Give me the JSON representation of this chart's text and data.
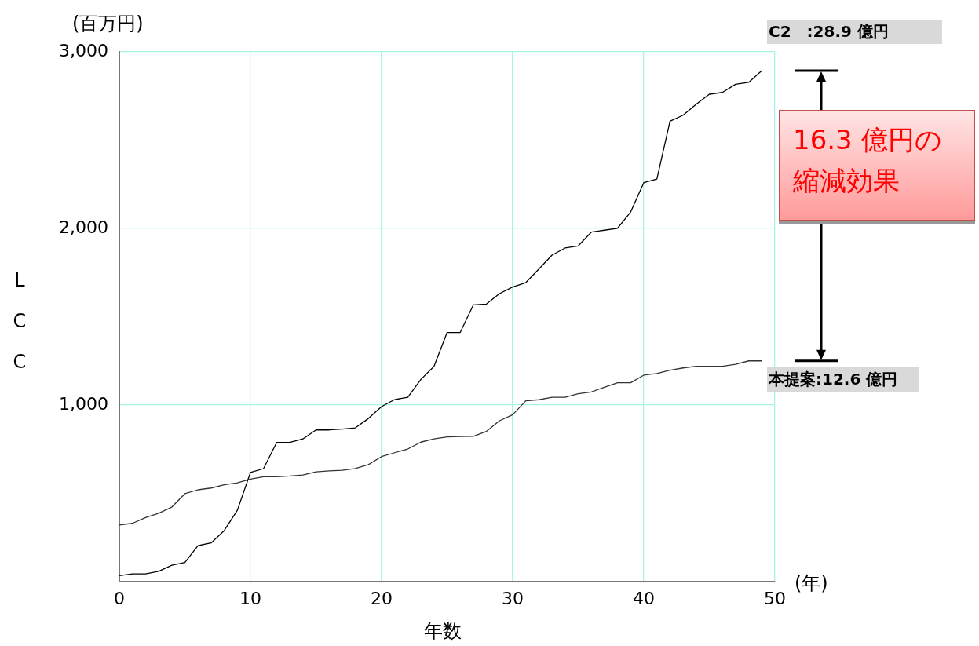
{
  "chart_data": {
    "type": "line",
    "xlabel": "年数",
    "ylabel": "LCC",
    "x": [
      0,
      1,
      2,
      3,
      4,
      5,
      6,
      7,
      8,
      9,
      10,
      11,
      12,
      13,
      14,
      15,
      16,
      17,
      18,
      19,
      20,
      21,
      22,
      23,
      24,
      25,
      26,
      27,
      28,
      29,
      30,
      31,
      32,
      33,
      34,
      35,
      36,
      37,
      38,
      39,
      40,
      41,
      42,
      43,
      44,
      45,
      46,
      47,
      48,
      49
    ],
    "series": [
      {
        "color": "#000000",
        "values": [
          34,
          44,
          44,
          58,
          93,
          108,
          204,
          219,
          289,
          404,
          618,
          640,
          788,
          788,
          808,
          859,
          859,
          864,
          871,
          924,
          991,
          1031,
          1044,
          1145,
          1219,
          1411,
          1411,
          1567,
          1572,
          1631,
          1668,
          1693,
          1770,
          1849,
          1889,
          1901,
          1979,
          1990,
          2001,
          2093,
          2259,
          2279,
          2607,
          2641,
          2703,
          2760,
          2770,
          2816,
          2827,
          2893
        ]
      },
      {
        "color": "#333333",
        "values": [
          321,
          330,
          363,
          387,
          422,
          498,
          520,
          530,
          548,
          559,
          581,
          594,
          594,
          598,
          604,
          622,
          627,
          631,
          641,
          663,
          708,
          730,
          751,
          790,
          808,
          819,
          822,
          823,
          851,
          911,
          945,
          1024,
          1030,
          1044,
          1044,
          1064,
          1074,
          1101,
          1126,
          1126,
          1169,
          1178,
          1197,
          1210,
          1219,
          1219,
          1219,
          1231,
          1250,
          1250
        ]
      }
    ],
    "xlim": [
      0,
      50
    ],
    "xticks": [
      0,
      10,
      20,
      30,
      40,
      50
    ],
    "ylim": [
      0,
      3000
    ],
    "yticks": [
      {
        "value": 1000,
        "label": "1,000"
      },
      {
        "value": 2000,
        "label": "2,000"
      },
      {
        "value": 3000,
        "label": "3,000"
      }
    ],
    "grid": true,
    "legend": false,
    "marker": "none",
    "line_style": "solid",
    "annotations": [
      "(百万円)",
      "(年)",
      "C2　:28.9 億円",
      "本提案:12.6 億円",
      "16.3 億円の縮減効果"
    ]
  }
}
